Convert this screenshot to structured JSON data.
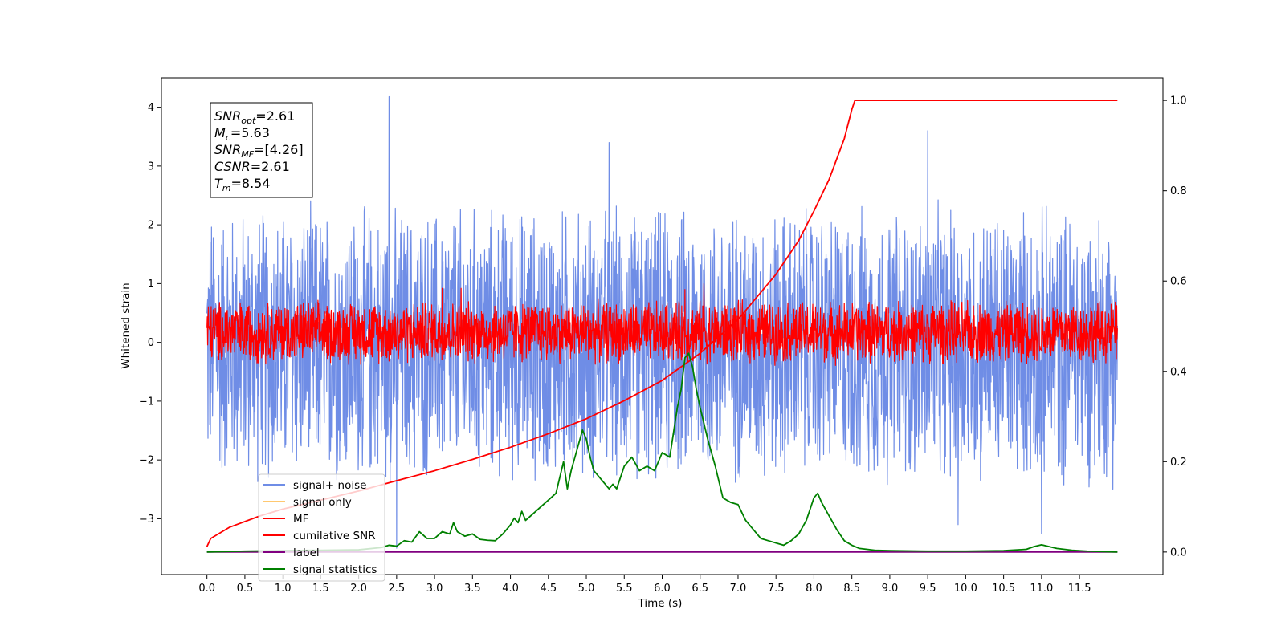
{
  "chart_data": {
    "type": "line",
    "xlabel": "Time (s)",
    "ylabel": "Whitened strain",
    "xlim": [
      -0.6,
      12.6
    ],
    "ylim": [
      -3.95,
      4.5
    ],
    "y2lim": [
      -0.05,
      1.05
    ],
    "x_ticks": [
      0.0,
      0.5,
      1.0,
      1.5,
      2.0,
      2.5,
      3.0,
      3.5,
      4.0,
      4.5,
      5.0,
      5.5,
      6.0,
      6.5,
      7.0,
      7.5,
      8.0,
      8.5,
      9.0,
      9.5,
      10.0,
      10.5,
      11.0,
      11.5
    ],
    "x_tick_labels": [
      "0.0",
      "0.5",
      "1.0",
      "1.5",
      "2.0",
      "2.5",
      "3.0",
      "3.5",
      "4.0",
      "4.5",
      "5.0",
      "5.5",
      "6.0",
      "6.5",
      "7.0",
      "7.5",
      "8.0",
      "8.5",
      "9.0",
      "9.5",
      "10.0",
      "10.5",
      "11.0",
      "11.5"
    ],
    "y_ticks": [
      -3,
      -2,
      -1,
      0,
      1,
      2,
      3,
      4
    ],
    "y_tick_labels": [
      "−3",
      "−2",
      "−1",
      "0",
      "1",
      "2",
      "3",
      "4"
    ],
    "y2_ticks": [
      0.0,
      0.2,
      0.4,
      0.6,
      0.8,
      1.0
    ],
    "y2_tick_labels": [
      "0.0",
      "0.2",
      "0.4",
      "0.6",
      "0.8",
      "1.0"
    ],
    "grid": false,
    "legend_position": "lower-left",
    "annotation": {
      "lines": [
        {
          "base": "SNR",
          "sub": "opt",
          "value": "=2.61"
        },
        {
          "base": "M",
          "sub": "c",
          "value": "=5.63"
        },
        {
          "base": "SNR",
          "sub": "MF",
          "value": "=[4.26]"
        },
        {
          "base": "CSNR",
          "sub": "",
          "value": "=2.61"
        },
        {
          "base": "T",
          "sub": "m",
          "value": "=8.54"
        }
      ]
    },
    "series": [
      {
        "name": "signal+ noise",
        "color": "#6f8de6",
        "axis": "left",
        "kind": "noise",
        "t_range": [
          0.0,
          12.0
        ],
        "envelope": [
          -2.6,
          2.5
        ],
        "spike_peaks": [
          {
            "x": 2.4,
            "y": 4.18
          },
          {
            "x": 9.5,
            "y": 3.6
          },
          {
            "x": 5.3,
            "y": 3.4
          },
          {
            "x": 11.0,
            "y": -3.25
          },
          {
            "x": 2.5,
            "y": -3.5
          },
          {
            "x": 9.9,
            "y": -3.1
          }
        ]
      },
      {
        "name": "signal only",
        "color": "#ffc870",
        "axis": "left",
        "kind": "none",
        "x": [],
        "y": []
      },
      {
        "name": "MF",
        "color": "#ff0000",
        "axis": "left",
        "kind": "noise",
        "t_range": [
          0.0,
          12.0
        ],
        "envelope": [
          -0.4,
          0.75
        ],
        "spike_peaks": [
          {
            "x": 6.55,
            "y": 1.0
          },
          {
            "x": 3.1,
            "y": 0.92
          },
          {
            "x": 6.3,
            "y": 0.9
          },
          {
            "x": 3.35,
            "y": 0.92
          }
        ]
      },
      {
        "name": "cumilative SNR",
        "color": "#ff0000",
        "axis": "right",
        "kind": "line",
        "x": [
          0.0,
          0.05,
          0.3,
          0.7,
          1.0,
          1.5,
          2.0,
          2.5,
          3.0,
          3.5,
          4.0,
          4.5,
          5.0,
          5.5,
          6.0,
          6.5,
          7.0,
          7.5,
          7.8,
          8.0,
          8.2,
          8.4,
          8.5,
          8.54,
          12.0
        ],
        "y": [
          0.012,
          0.03,
          0.055,
          0.08,
          0.095,
          0.115,
          0.135,
          0.158,
          0.18,
          0.205,
          0.232,
          0.262,
          0.295,
          0.335,
          0.38,
          0.44,
          0.515,
          0.615,
          0.69,
          0.755,
          0.825,
          0.915,
          0.98,
          1.0,
          1.0
        ]
      },
      {
        "name": "label",
        "color": "#800080",
        "axis": "right",
        "kind": "line",
        "x": [
          0.0,
          12.0
        ],
        "y": [
          0.0,
          0.0
        ]
      },
      {
        "name": "signal statistics",
        "color": "#008000",
        "axis": "right",
        "kind": "line",
        "x": [
          0.0,
          0.5,
          1.0,
          1.5,
          2.0,
          2.3,
          2.4,
          2.5,
          2.6,
          2.7,
          2.8,
          2.9,
          3.0,
          3.1,
          3.2,
          3.25,
          3.3,
          3.4,
          3.5,
          3.6,
          3.7,
          3.8,
          3.9,
          4.0,
          4.05,
          4.1,
          4.15,
          4.2,
          4.3,
          4.4,
          4.5,
          4.6,
          4.7,
          4.75,
          4.8,
          4.9,
          4.95,
          5.0,
          5.05,
          5.1,
          5.2,
          5.3,
          5.35,
          5.4,
          5.5,
          5.6,
          5.7,
          5.8,
          5.9,
          6.0,
          6.1,
          6.2,
          6.25,
          6.3,
          6.35,
          6.4,
          6.45,
          6.5,
          6.6,
          6.7,
          6.8,
          6.9,
          7.0,
          7.1,
          7.2,
          7.3,
          7.4,
          7.5,
          7.6,
          7.7,
          7.8,
          7.9,
          8.0,
          8.05,
          8.1,
          8.2,
          8.3,
          8.4,
          8.5,
          8.6,
          8.7,
          8.8,
          9.0,
          9.5,
          10.0,
          10.5,
          10.8,
          10.9,
          11.0,
          11.1,
          11.2,
          11.4,
          11.6,
          12.0
        ],
        "y": [
          0.0,
          0.002,
          0.003,
          0.004,
          0.005,
          0.01,
          0.015,
          0.013,
          0.025,
          0.022,
          0.045,
          0.03,
          0.03,
          0.045,
          0.04,
          0.065,
          0.045,
          0.035,
          0.04,
          0.028,
          0.026,
          0.025,
          0.04,
          0.06,
          0.075,
          0.065,
          0.09,
          0.07,
          0.085,
          0.1,
          0.115,
          0.13,
          0.2,
          0.14,
          0.18,
          0.24,
          0.27,
          0.25,
          0.21,
          0.18,
          0.16,
          0.14,
          0.15,
          0.14,
          0.19,
          0.21,
          0.18,
          0.19,
          0.18,
          0.22,
          0.21,
          0.32,
          0.36,
          0.43,
          0.44,
          0.41,
          0.36,
          0.32,
          0.25,
          0.19,
          0.12,
          0.11,
          0.105,
          0.07,
          0.05,
          0.03,
          0.025,
          0.02,
          0.015,
          0.025,
          0.04,
          0.07,
          0.12,
          0.13,
          0.11,
          0.08,
          0.05,
          0.025,
          0.015,
          0.008,
          0.006,
          0.004,
          0.003,
          0.002,
          0.002,
          0.003,
          0.006,
          0.012,
          0.016,
          0.012,
          0.008,
          0.004,
          0.002,
          0.0
        ]
      }
    ]
  }
}
